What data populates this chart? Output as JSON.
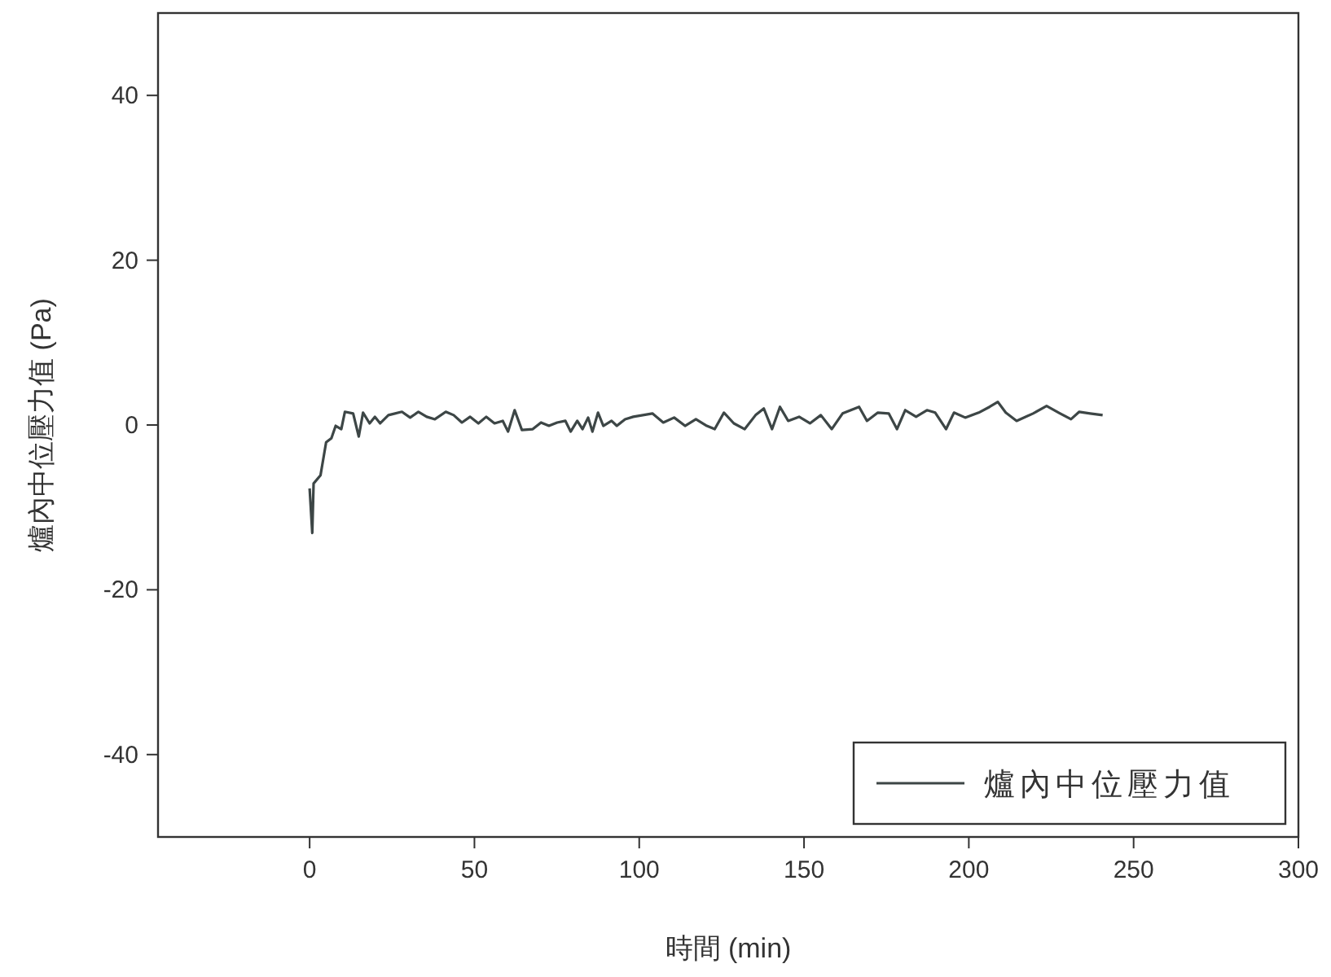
{
  "chart_data": {
    "type": "line",
    "xlabel": "時間 (min)",
    "ylabel": "爐內中位壓力值 (Pa)",
    "xlim": [
      -46,
      300
    ],
    "ylim": [
      -50,
      50
    ],
    "xticks": [
      0,
      50,
      100,
      150,
      200,
      250,
      300
    ],
    "yticks": [
      -40,
      -20,
      0,
      20,
      40
    ],
    "legend": "bottom right",
    "x": [
      0,
      0.8,
      1.2,
      3.3,
      5,
      6.6,
      7.9,
      9.6,
      10.7,
      13.2,
      14.9,
      16.2,
      18.2,
      19.8,
      21.4,
      23.9,
      28,
      30.5,
      33,
      35.5,
      38,
      41.3,
      43.7,
      46.2,
      48.7,
      51.2,
      53.6,
      56.1,
      58.6,
      60.2,
      62.2,
      64.4,
      67.7,
      70.2,
      72.6,
      75.1,
      77.6,
      79.2,
      81.2,
      82.8,
      84.5,
      85.8,
      87.5,
      89.1,
      91.6,
      93.2,
      95.7,
      98.2,
      104,
      107.3,
      110.6,
      113.9,
      117.2,
      120.5,
      122.9,
      125.7,
      128.7,
      132,
      135.3,
      137.8,
      140.3,
      142.7,
      145.2,
      148.5,
      151.8,
      155.1,
      158.4,
      161.7,
      164.2,
      166.7,
      169.1,
      172.4,
      175.7,
      178.2,
      180.7,
      184,
      187.3,
      189.8,
      193.1,
      195.5,
      198.9,
      203,
      206.3,
      208.8,
      211.2,
      214.5,
      219.5,
      223.6,
      227.7,
      231,
      233.5,
      236.8,
      240.6
    ],
    "series": [
      {
        "name": "爐內中位壓力值",
        "color": "#3d4646",
        "values": [
          -7.7,
          -13.1,
          -7.1,
          -6.1,
          -2.1,
          -1.6,
          -0.1,
          -0.5,
          1.6,
          1.4,
          -1.4,
          1.5,
          0.2,
          1.0,
          0.2,
          1.2,
          1.6,
          0.9,
          1.6,
          1.0,
          0.7,
          1.6,
          1.2,
          0.3,
          1.0,
          0.2,
          1.0,
          0.2,
          0.5,
          -0.8,
          1.8,
          -0.6,
          -0.5,
          0.3,
          -0.1,
          0.3,
          0.5,
          -0.8,
          0.5,
          -0.5,
          0.9,
          -0.8,
          1.5,
          -0.1,
          0.5,
          -0.1,
          0.7,
          1.0,
          1.4,
          0.3,
          0.9,
          -0.1,
          0.7,
          -0.1,
          -0.5,
          1.5,
          0.2,
          -0.5,
          1.2,
          2.0,
          -0.5,
          2.2,
          0.5,
          1.0,
          0.2,
          1.2,
          -0.5,
          1.4,
          1.8,
          2.2,
          0.5,
          1.5,
          1.4,
          -0.5,
          1.8,
          1.0,
          1.8,
          1.5,
          -0.5,
          1.5,
          0.9,
          1.5,
          2.2,
          2.8,
          1.5,
          0.5,
          1.4,
          2.3,
          1.4,
          0.7,
          1.6,
          1.4,
          1.2
        ]
      }
    ]
  }
}
